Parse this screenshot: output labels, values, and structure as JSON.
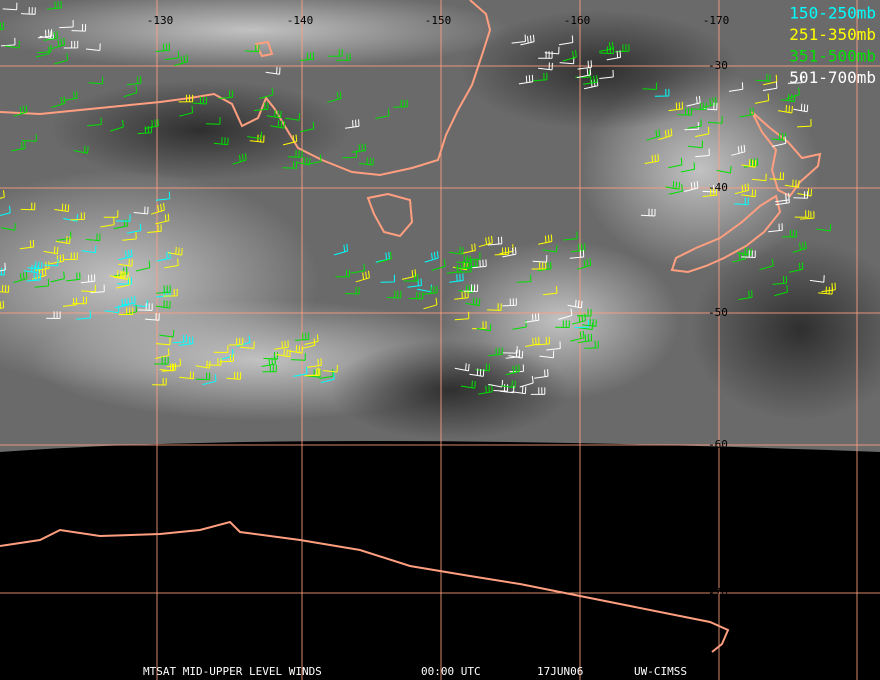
{
  "longitude_labels": [
    "-130",
    "-140",
    "-150",
    "-160",
    "-170"
  ],
  "latitude_labels": [
    "-30",
    "-40",
    "-50",
    "-60",
    "-70"
  ],
  "legend": [
    {
      "label": "150-250mb",
      "color": "#00ffff"
    },
    {
      "label": "251-350mb",
      "color": "#ffff00"
    },
    {
      "label": "351-500mb",
      "color": "#00e000"
    },
    {
      "label": "501-700mb",
      "color": "#ffffff"
    }
  ],
  "footer": [
    "MTSAT MID-UPPER LEVEL WINDS",
    "00:00 UTC",
    "17JUN06",
    "UW-CIMSS"
  ]
}
